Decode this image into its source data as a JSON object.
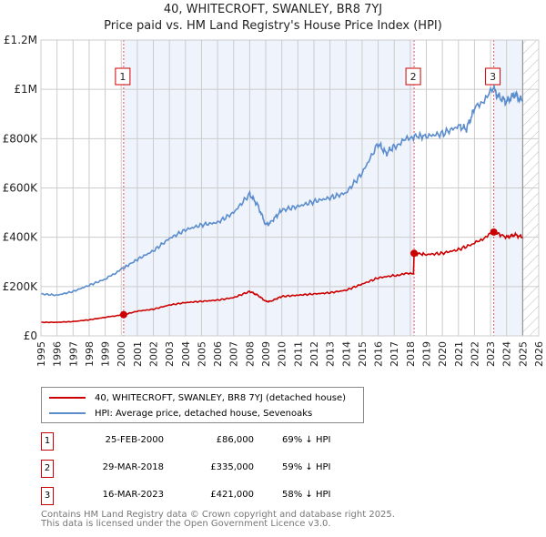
{
  "chart_data": {
    "type": "line",
    "title": "40, WHITECROFT, SWANLEY, BR8 7YJ",
    "subtitle": "Price paid vs. HM Land Registry's House Price Index (HPI)",
    "xlim": [
      1995,
      2026
    ],
    "ylim": [
      0,
      1200000
    ],
    "yticks": [
      {
        "v": 0,
        "label": "£0"
      },
      {
        "v": 200000,
        "label": "£200K"
      },
      {
        "v": 400000,
        "label": "£400K"
      },
      {
        "v": 600000,
        "label": "£600K"
      },
      {
        "v": 800000,
        "label": "£800K"
      },
      {
        "v": 1000000,
        "label": "£1M"
      },
      {
        "v": 1200000,
        "label": "£1.2M"
      }
    ],
    "xticks": [
      "1995",
      "1996",
      "1997",
      "1998",
      "1999",
      "2000",
      "2001",
      "2002",
      "2003",
      "2004",
      "2005",
      "2006",
      "2007",
      "2008",
      "2009",
      "2010",
      "2011",
      "2012",
      "2013",
      "2014",
      "2015",
      "2016",
      "2017",
      "2018",
      "2019",
      "2020",
      "2021",
      "2022",
      "2023",
      "2024",
      "2025",
      "2026"
    ],
    "grid": true,
    "series": [
      {
        "name": "40, WHITECROFT, SWANLEY, BR8 7YJ (detached house)",
        "color": "#cc0000",
        "x": [
          1995,
          1996,
          1997,
          1998,
          1999,
          2000.15,
          2001,
          2002,
          2003,
          2004,
          2005,
          2006,
          2007,
          2008,
          2008.5,
          2009,
          2009.3,
          2010,
          2011,
          2012,
          2013,
          2014,
          2015,
          2016,
          2017,
          2018.2,
          2018.24,
          2019,
          2020,
          2021,
          2022,
          2023.2,
          2024,
          2024.5,
          2025
        ],
        "y": [
          55000,
          55000,
          58000,
          65000,
          75000,
          86000,
          100000,
          108000,
          125000,
          135000,
          140000,
          145000,
          155000,
          180000,
          165000,
          140000,
          140000,
          160000,
          165000,
          170000,
          175000,
          185000,
          210000,
          235000,
          245000,
          255000,
          335000,
          330000,
          335000,
          350000,
          375000,
          421000,
          400000,
          410000,
          400000
        ]
      },
      {
        "name": "HPI: Average price, detached house, Sevenoaks",
        "color": "#5b8ccc",
        "x": [
          1995,
          1996,
          1997,
          1998,
          1999,
          2000.15,
          2001,
          2002,
          2003,
          2004,
          2005,
          2006,
          2007,
          2008,
          2008.5,
          2009,
          2009.3,
          2010,
          2011,
          2012,
          2013,
          2014,
          2015,
          2016,
          2016.5,
          2017,
          2018.2,
          2019,
          2020,
          2021,
          2021.5,
          2022,
          2023.2,
          2023.5,
          2024,
          2024.5,
          2025
        ],
        "y": [
          170000,
          165000,
          180000,
          205000,
          230000,
          275000,
          310000,
          345000,
          395000,
          430000,
          450000,
          460000,
          500000,
          575000,
          530000,
          450000,
          460000,
          510000,
          525000,
          545000,
          560000,
          580000,
          660000,
          780000,
          740000,
          770000,
          810000,
          810000,
          820000,
          850000,
          840000,
          920000,
          1000000,
          970000,
          950000,
          980000,
          950000
        ]
      }
    ],
    "sales": [
      {
        "n": "1",
        "x": 2000.15,
        "y": 86000,
        "date": "25-FEB-2000",
        "price": "£86,000",
        "hpi": "69% ↓ HPI"
      },
      {
        "n": "2",
        "x": 2018.24,
        "y": 335000,
        "date": "29-MAR-2018",
        "price": "£335,000",
        "hpi": "59% ↓ HPI"
      },
      {
        "n": "3",
        "x": 2023.2,
        "y": 421000,
        "date": "16-MAR-2023",
        "price": "£421,000",
        "hpi": "58% ↓ HPI"
      }
    ],
    "legend_placement": "below"
  },
  "footer": {
    "line1": "Contains HM Land Registry data © Crown copyright and database right 2025.",
    "line2": "This data is licensed under the Open Government Licence v3.0."
  }
}
